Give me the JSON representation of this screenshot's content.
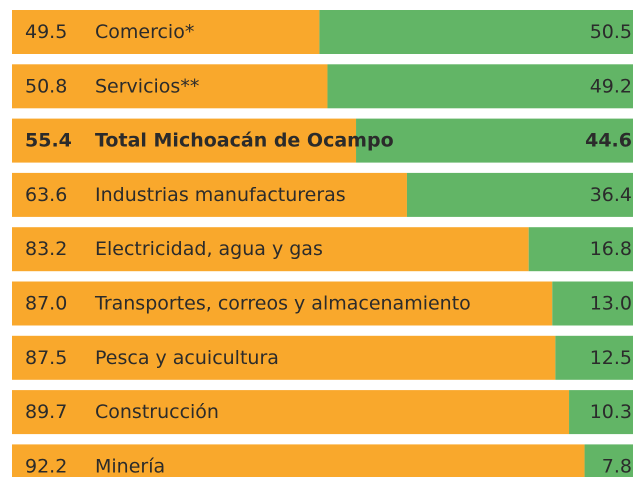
{
  "chart_data": {
    "type": "stacked-bar-horizontal",
    "categories": [
      "Comercio*",
      "Servicios**",
      "Total Michoacán de Ocampo",
      "Industrias manufactureras",
      "Electricidad, agua y gas",
      "Transportes, correos y almacenamiento",
      "Pesca y acuicultura",
      "Construcción",
      "Minería"
    ],
    "highlight_category": "Total Michoacán de Ocampo",
    "series": [
      {
        "color": "#f9a82c",
        "values": [
          49.5,
          50.8,
          55.4,
          63.6,
          83.2,
          87.0,
          87.5,
          89.7,
          92.2
        ],
        "value_labels": [
          "49.5",
          "50.8",
          "55.4",
          "63.6",
          "83.2",
          "87.0",
          "87.5",
          "89.7",
          "92.2"
        ]
      },
      {
        "color": "#62b566",
        "values": [
          50.5,
          49.2,
          44.6,
          36.4,
          16.8,
          13.0,
          12.5,
          10.3,
          7.8
        ],
        "value_labels": [
          "50.5",
          "49.2",
          "44.6",
          "36.4",
          "16.8",
          "13.0",
          "12.5",
          "10.3",
          "7.8"
        ]
      }
    ]
  }
}
